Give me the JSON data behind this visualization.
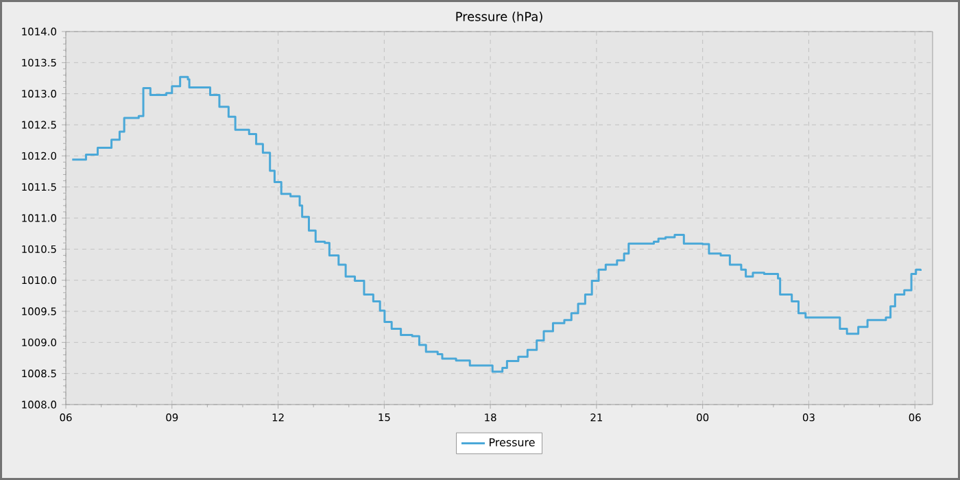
{
  "chart_data": {
    "type": "step",
    "title": "Pressure (hPa)",
    "x": [
      6.18,
      6.57,
      6.9,
      7.29,
      7.52,
      7.65,
      8.06,
      8.19,
      8.39,
      8.84,
      9.0,
      9.23,
      9.45,
      9.49,
      9.88,
      10.08,
      10.34,
      10.6,
      10.79,
      11.18,
      11.38,
      11.57,
      11.77,
      11.9,
      12.09,
      12.35,
      12.61,
      12.68,
      12.87,
      13.06,
      13.32,
      13.45,
      13.71,
      13.91,
      14.17,
      14.43,
      14.69,
      14.88,
      15.01,
      15.21,
      15.47,
      15.79,
      15.99,
      16.18,
      16.51,
      16.64,
      17.03,
      17.42,
      17.94,
      18.06,
      18.34,
      18.47,
      18.79,
      19.05,
      19.31,
      19.51,
      19.77,
      20.09,
      20.29,
      20.48,
      20.68,
      20.87,
      21.06,
      21.26,
      21.58,
      21.78,
      21.91,
      22.62,
      22.75,
      22.95,
      23.21,
      23.47,
      24.0,
      24.18,
      24.51,
      24.77,
      25.09,
      25.22,
      25.42,
      25.74,
      26.13,
      26.19,
      26.52,
      26.71,
      26.91,
      27.62,
      27.88,
      28.08,
      28.4,
      28.66,
      29.18,
      29.31,
      29.44,
      29.7,
      29.9,
      30.03,
      30.16
    ],
    "series": [
      {
        "name": "Pressure",
        "color": "#4aa8d8",
        "values": [
          1011.94,
          1012.02,
          1012.13,
          1012.26,
          1012.39,
          1012.61,
          1012.64,
          1013.09,
          1012.98,
          1013.01,
          1013.12,
          1013.27,
          1013.23,
          1013.1,
          1013.1,
          1012.98,
          1012.79,
          1012.63,
          1012.42,
          1012.35,
          1012.19,
          1012.05,
          1011.76,
          1011.58,
          1011.39,
          1011.35,
          1011.2,
          1011.02,
          1010.8,
          1010.62,
          1010.6,
          1010.4,
          1010.25,
          1010.06,
          1009.99,
          1009.77,
          1009.66,
          1009.51,
          1009.33,
          1009.22,
          1009.12,
          1009.1,
          1008.96,
          1008.85,
          1008.81,
          1008.74,
          1008.71,
          1008.63,
          1008.63,
          1008.53,
          1008.59,
          1008.7,
          1008.77,
          1008.88,
          1009.03,
          1009.18,
          1009.31,
          1009.36,
          1009.47,
          1009.62,
          1009.77,
          1009.99,
          1010.17,
          1010.25,
          1010.32,
          1010.43,
          1010.59,
          1010.62,
          1010.67,
          1010.69,
          1010.73,
          1010.59,
          1010.58,
          1010.43,
          1010.4,
          1010.25,
          1010.17,
          1010.06,
          1010.12,
          1010.1,
          1010.03,
          1009.77,
          1009.66,
          1009.47,
          1009.4,
          1009.4,
          1009.22,
          1009.14,
          1009.25,
          1009.36,
          1009.4,
          1009.58,
          1009.77,
          1009.84,
          1010.1,
          1010.17,
          1010.15
        ]
      }
    ],
    "xlim": [
      6,
      30.5
    ],
    "xticks": [
      {
        "value": 6,
        "label": "06"
      },
      {
        "value": 9,
        "label": "09"
      },
      12,
      15,
      18,
      21,
      {
        "value": 24,
        "label": "00"
      },
      {
        "value": 27,
        "label": "03"
      },
      {
        "value": 30,
        "label": "06"
      }
    ],
    "ylim": [
      1008,
      1014
    ],
    "yticks": [
      {
        "value": 1008,
        "label": "1008.0"
      },
      1008.5,
      {
        "value": 1009,
        "label": "1009.0"
      },
      1009.5,
      {
        "value": 1010,
        "label": "1010.0"
      },
      1010.5,
      {
        "value": 1011,
        "label": "1011.0"
      },
      1011.5,
      {
        "value": 1012,
        "label": "1012.0"
      },
      1012.5,
      {
        "value": 1013,
        "label": "1013.0"
      },
      1013.5,
      {
        "value": 1014,
        "label": "1014.0"
      }
    ],
    "grid": true,
    "legend": "bottom",
    "marker": "none",
    "line_style": "solid"
  }
}
